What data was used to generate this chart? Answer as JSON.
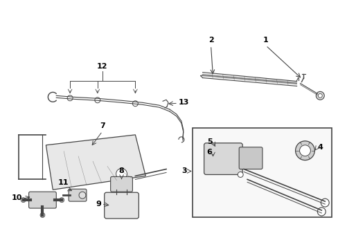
{
  "bg_color": "#ffffff",
  "line_color": "#444444",
  "fig_width": 4.89,
  "fig_height": 3.6,
  "dpi": 100
}
